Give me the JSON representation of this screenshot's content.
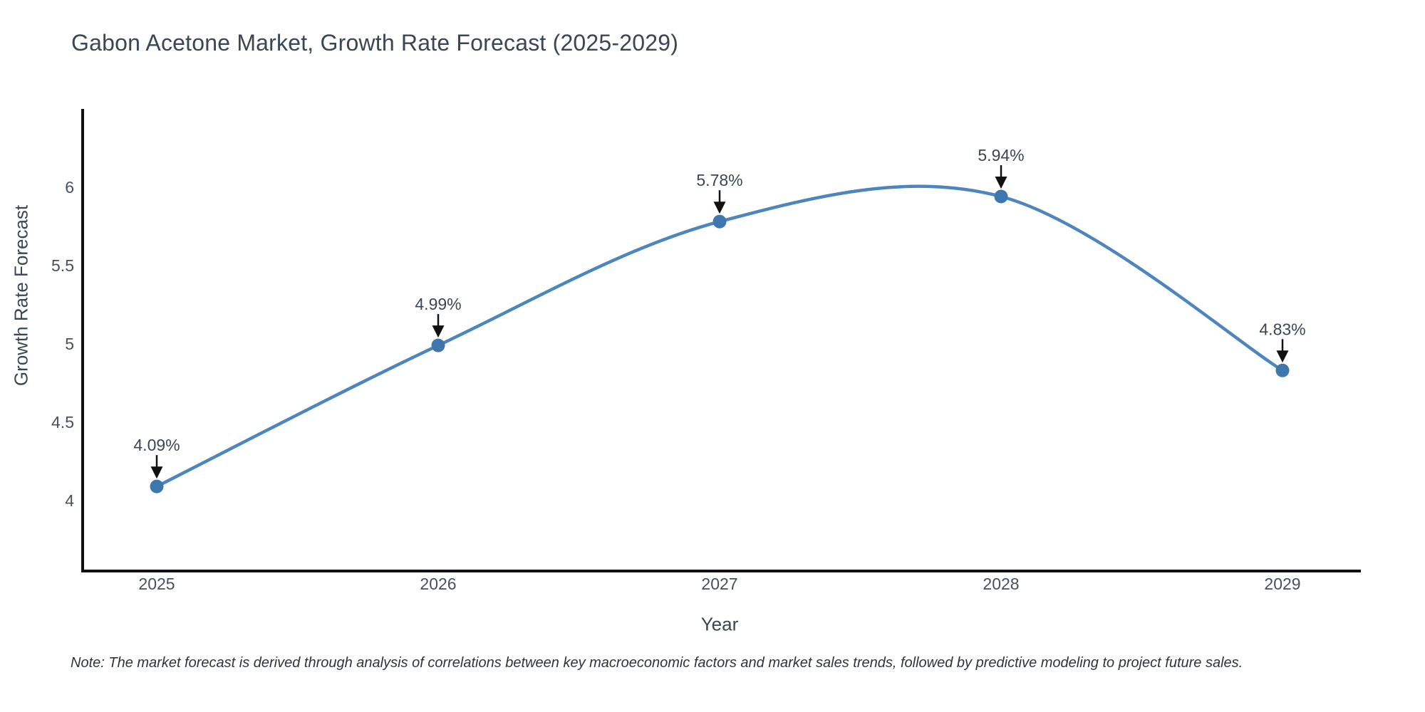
{
  "page": {
    "note": "Note: The market forecast is derived through analysis of correlations between key macroeconomic factors and market sales trends, followed by predictive modeling to project future sales."
  },
  "chart_data": {
    "type": "line",
    "line_shape": "spline",
    "title": "Gabon Acetone Market, Growth Rate Forecast (2025-2029)",
    "xlabel": "Year",
    "ylabel": "Growth Rate Forecast",
    "categories": [
      "2025",
      "2026",
      "2027",
      "2028",
      "2029"
    ],
    "values": [
      4.09,
      4.99,
      5.78,
      5.94,
      4.83
    ],
    "point_labels": [
      "4.09%",
      "4.99%",
      "5.78%",
      "5.94%",
      "4.83%"
    ],
    "yticks": [
      4,
      4.5,
      5,
      5.5,
      6
    ],
    "ytick_labels": [
      "4",
      "4.5",
      "5",
      "5.5",
      "6"
    ],
    "ylim": [
      3.55,
      6.49
    ],
    "grid": false,
    "legend": false,
    "annotations": "value labels with downward arrows onto each data point",
    "colors": {
      "line": "#4d86bd",
      "marker": "#3e76ae",
      "axis": "#111111",
      "arrow": "#111111",
      "title_text": "#3c4554",
      "tick_text": "#47505c",
      "note_text": "#2f343b",
      "background": "#ffffff"
    }
  }
}
